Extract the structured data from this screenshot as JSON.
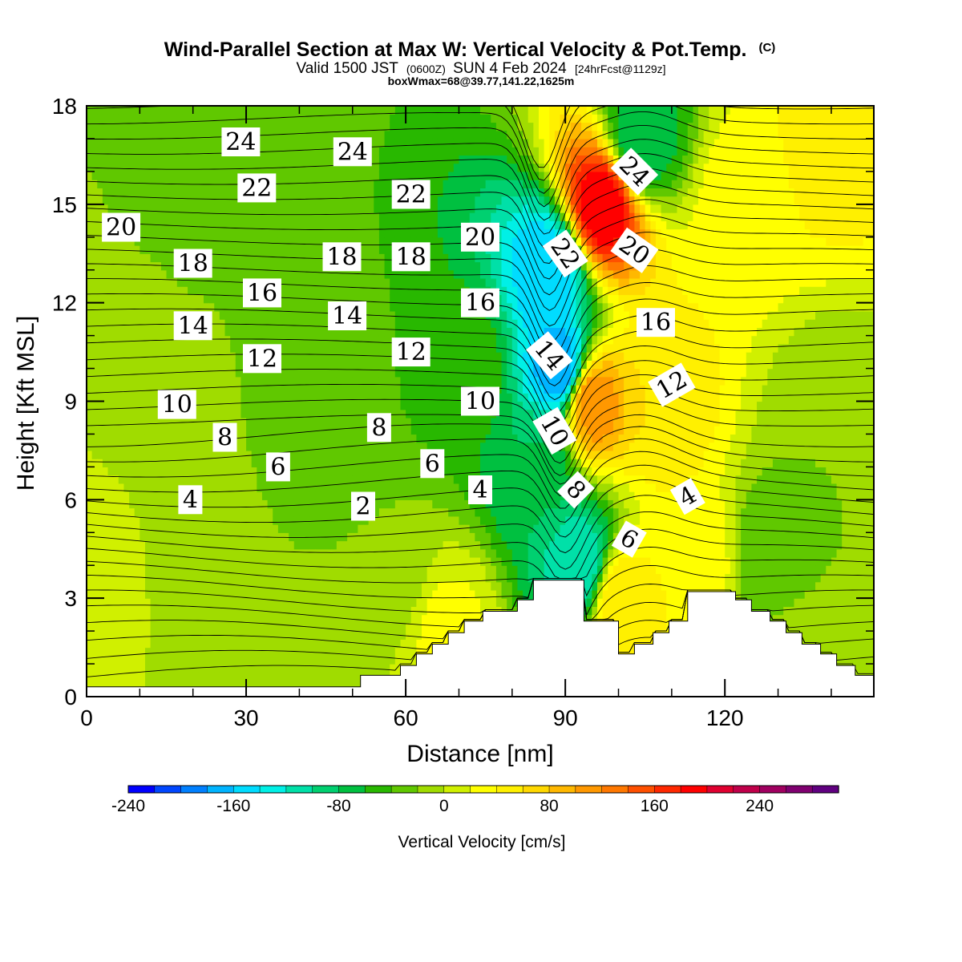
{
  "chart_data": {
    "type": "heatmap",
    "title": "Wind-Parallel Section at Max W: Vertical Velocity & Pot.Temp.",
    "title_mark": "(C)",
    "subtitle_parts": [
      "Valid 1500 JST",
      "(0600Z)",
      "SUN 4 Feb 2024",
      "[24hrFcst@1129z]"
    ],
    "subtitle2": "boxWmax=68@39.77,141.22,1625m",
    "xlabel": "Distance [nm]",
    "ylabel": "Height [Kft MSL]",
    "xlim": [
      0,
      148
    ],
    "ylim": [
      0,
      18
    ],
    "x_ticks": [
      "0",
      "30",
      "60",
      "90",
      "120"
    ],
    "x_tick_values": [
      0,
      30,
      60,
      90,
      120
    ],
    "y_ticks": [
      "0",
      "3",
      "6",
      "9",
      "12",
      "15",
      "18"
    ],
    "y_tick_values": [
      0,
      3,
      6,
      9,
      12,
      15,
      18
    ],
    "colorbar": {
      "label": "Vertical Velocity [cm/s]",
      "min": -240,
      "max": 300,
      "step": 20,
      "tick_labels": [
        "-240",
        "-160",
        "-80",
        "0",
        "80",
        "160",
        "240"
      ],
      "tick_values": [
        -240,
        -160,
        -80,
        0,
        80,
        160,
        240
      ],
      "colors": [
        "#0000ff",
        "#0046ff",
        "#0080ff",
        "#00b4ff",
        "#00dcff",
        "#00f0e6",
        "#00e0a8",
        "#00d070",
        "#00c040",
        "#28b800",
        "#60c800",
        "#a0dc00",
        "#d0f000",
        "#ffff00",
        "#fff000",
        "#ffd800",
        "#ffb800",
        "#ff9800",
        "#ff7800",
        "#ff5000",
        "#ff2800",
        "#ff0000",
        "#e00030",
        "#c0004a",
        "#a00060",
        "#800070",
        "#600080"
      ]
    },
    "velocity_field": [
      {
        "x": 0,
        "z": 1.5,
        "w": 8
      },
      {
        "x": 10,
        "z": 8,
        "w": 0
      },
      {
        "x": 25,
        "z": 1,
        "w": -15
      },
      {
        "x": 22,
        "z": 16,
        "w": -25
      },
      {
        "x": 47,
        "z": 10,
        "w": -35
      },
      {
        "x": 57,
        "z": 4,
        "w": -20
      },
      {
        "x": 68,
        "z": 2,
        "w": 25
      },
      {
        "x": 72,
        "z": 10,
        "w": -50
      },
      {
        "x": 85,
        "z": 7,
        "w": -80
      },
      {
        "x": 89,
        "z": 10,
        "w": -180
      },
      {
        "x": 87,
        "z": 13,
        "w": -160
      },
      {
        "x": 93,
        "z": 4,
        "w": -120
      },
      {
        "x": 95,
        "z": 9,
        "w": 120
      },
      {
        "x": 97,
        "z": 15,
        "w": 200
      },
      {
        "x": 100,
        "z": 3,
        "w": 60
      },
      {
        "x": 104,
        "z": 17,
        "w": -80
      },
      {
        "x": 108,
        "z": 9,
        "w": 60
      },
      {
        "x": 115,
        "z": 4,
        "w": 40
      },
      {
        "x": 123,
        "z": 15,
        "w": 30
      },
      {
        "x": 140,
        "z": 17,
        "w": 50
      },
      {
        "x": 128,
        "z": 4,
        "w": -40
      },
      {
        "x": 140,
        "z": 8,
        "w": -20
      },
      {
        "x": 133,
        "z": 1,
        "w": 0
      }
    ],
    "theta_contour_labels": [
      {
        "text": "24",
        "x": 29,
        "z": 16.9,
        "rot": 0
      },
      {
        "text": "24",
        "x": 50,
        "z": 16.6,
        "rot": 0
      },
      {
        "text": "24",
        "x": 103,
        "z": 16.0,
        "rot": 45
      },
      {
        "text": "22",
        "x": 32,
        "z": 15.5,
        "rot": 0
      },
      {
        "text": "22",
        "x": 61,
        "z": 15.3,
        "rot": 0
      },
      {
        "text": "22",
        "x": 90,
        "z": 13.5,
        "rot": 55
      },
      {
        "text": "20",
        "x": 6.5,
        "z": 14.3,
        "rot": 0
      },
      {
        "text": "20",
        "x": 74,
        "z": 14.0,
        "rot": 0
      },
      {
        "text": "20",
        "x": 103,
        "z": 13.6,
        "rot": 35
      },
      {
        "text": "18",
        "x": 20,
        "z": 13.2,
        "rot": 0
      },
      {
        "text": "18",
        "x": 48,
        "z": 13.4,
        "rot": 0
      },
      {
        "text": "18",
        "x": 61,
        "z": 13.4,
        "rot": 0
      },
      {
        "text": "16",
        "x": 33,
        "z": 12.3,
        "rot": 0
      },
      {
        "text": "16",
        "x": 74,
        "z": 12.0,
        "rot": 0
      },
      {
        "text": "16",
        "x": 107,
        "z": 11.4,
        "rot": 0
      },
      {
        "text": "14",
        "x": 20,
        "z": 11.3,
        "rot": 0
      },
      {
        "text": "14",
        "x": 49,
        "z": 11.6,
        "rot": 0
      },
      {
        "text": "14",
        "x": 87,
        "z": 10.4,
        "rot": 50
      },
      {
        "text": "12",
        "x": 33,
        "z": 10.3,
        "rot": 0
      },
      {
        "text": "12",
        "x": 61,
        "z": 10.5,
        "rot": 0
      },
      {
        "text": "12",
        "x": 110,
        "z": 9.5,
        "rot": -30
      },
      {
        "text": "10",
        "x": 17,
        "z": 8.9,
        "rot": 0
      },
      {
        "text": "10",
        "x": 74,
        "z": 9.0,
        "rot": 0
      },
      {
        "text": "10",
        "x": 88,
        "z": 8.1,
        "rot": 60
      },
      {
        "text": "8",
        "x": 26,
        "z": 7.9,
        "rot": 0
      },
      {
        "text": "8",
        "x": 55,
        "z": 8.2,
        "rot": 0
      },
      {
        "text": "8",
        "x": 92,
        "z": 6.3,
        "rot": 45
      },
      {
        "text": "6",
        "x": 36,
        "z": 7.0,
        "rot": 0
      },
      {
        "text": "6",
        "x": 65,
        "z": 7.1,
        "rot": 0
      },
      {
        "text": "6",
        "x": 102,
        "z": 4.8,
        "rot": 30
      },
      {
        "text": "4",
        "x": 19.5,
        "z": 6.0,
        "rot": 0
      },
      {
        "text": "4",
        "x": 74,
        "z": 6.3,
        "rot": 0
      },
      {
        "text": "4",
        "x": 113,
        "z": 6.1,
        "rot": -30
      },
      {
        "text": "2",
        "x": 52,
        "z": 5.8,
        "rot": 0
      }
    ],
    "terrain_profile": [
      [
        0,
        0.3
      ],
      [
        51.5,
        0.3
      ],
      [
        51.5,
        0.65
      ],
      [
        59,
        0.65
      ],
      [
        59,
        0.95
      ],
      [
        62,
        0.95
      ],
      [
        62,
        1.3
      ],
      [
        65,
        1.3
      ],
      [
        65,
        1.6
      ],
      [
        68,
        1.6
      ],
      [
        68,
        1.95
      ],
      [
        71,
        1.95
      ],
      [
        71,
        2.3
      ],
      [
        74.5,
        2.3
      ],
      [
        74.5,
        2.6
      ],
      [
        81,
        2.6
      ],
      [
        81,
        2.95
      ],
      [
        84,
        2.95
      ],
      [
        84,
        3.55
      ],
      [
        93.5,
        3.55
      ],
      [
        93.5,
        2.3
      ],
      [
        100,
        2.3
      ],
      [
        100,
        1.3
      ],
      [
        103,
        1.3
      ],
      [
        103,
        1.6
      ],
      [
        106.5,
        1.6
      ],
      [
        106.5,
        1.95
      ],
      [
        109.5,
        1.95
      ],
      [
        109.5,
        2.3
      ],
      [
        113,
        2.3
      ],
      [
        113,
        2.6
      ],
      [
        113,
        3.2
      ],
      [
        122,
        3.2
      ],
      [
        122,
        2.95
      ],
      [
        125,
        2.95
      ],
      [
        125,
        2.6
      ],
      [
        128.5,
        2.6
      ],
      [
        128.5,
        2.3
      ],
      [
        131.5,
        2.3
      ],
      [
        131.5,
        1.95
      ],
      [
        134.5,
        1.95
      ],
      [
        134.5,
        1.6
      ],
      [
        138,
        1.6
      ],
      [
        138,
        1.3
      ],
      [
        141,
        1.3
      ],
      [
        141,
        0.95
      ],
      [
        144.5,
        0.95
      ],
      [
        144.5,
        0.65
      ],
      [
        148,
        0.65
      ]
    ]
  }
}
